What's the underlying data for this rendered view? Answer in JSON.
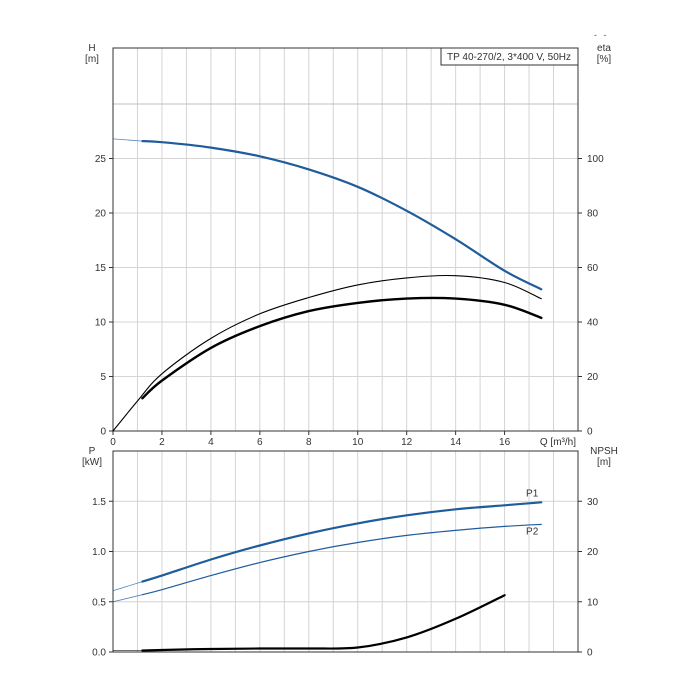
{
  "corner_mark": "- -",
  "chart_data": [
    {
      "type": "line",
      "title": "TP 40-270/2, 3*400 V, 50Hz",
      "xlabel": "Q [m³/h]",
      "xlim": [
        0,
        19
      ],
      "x_ticks": [
        "0",
        "2",
        "4",
        "6",
        "8",
        "10",
        "12",
        "14",
        "16"
      ],
      "left_axis": {
        "label": "H",
        "unit": "[m]",
        "ylim": [
          0,
          30
        ],
        "ticks": [
          "0",
          "5",
          "10",
          "15",
          "20",
          "25"
        ]
      },
      "right_axis": {
        "label": "eta",
        "unit": "[%]",
        "ylim": [
          0,
          120
        ],
        "ticks": [
          "0",
          "20",
          "40",
          "60",
          "80",
          "100"
        ]
      },
      "grid": true,
      "series": [
        {
          "name": "",
          "axis": "left",
          "color": "#1f5c9c",
          "x": [
            1.2,
            2,
            4,
            6,
            8,
            10,
            12,
            14,
            16,
            17.5
          ],
          "y": [
            26.6,
            26.5,
            26.0,
            25.2,
            24.0,
            22.4,
            20.2,
            17.6,
            14.7,
            13.0
          ],
          "x_thin": [
            0,
            1.2
          ],
          "y_thin": [
            26.8,
            26.6
          ]
        },
        {
          "name": "",
          "axis": "right",
          "color": "#000000",
          "width": 1.1,
          "x": [
            0,
            1,
            2,
            4,
            6,
            8,
            10,
            12,
            14,
            16,
            17.5
          ],
          "y": [
            0,
            11,
            21,
            34,
            43,
            49,
            53.6,
            56.2,
            57.0,
            54.5,
            48.5
          ]
        },
        {
          "name": "",
          "axis": "right",
          "color": "#000000",
          "width": 2.4,
          "x": [
            1.2,
            2,
            4,
            6,
            8,
            10,
            12,
            14,
            16,
            17.5
          ],
          "y": [
            12,
            18.5,
            30.5,
            38.5,
            44,
            47,
            48.6,
            48.6,
            46.3,
            41.5
          ]
        }
      ]
    },
    {
      "type": "line",
      "xlim": [
        0,
        19
      ],
      "left_axis": {
        "label": "P",
        "unit": "[kW]",
        "ylim": [
          0,
          2.0
        ],
        "ticks": [
          "0.0",
          "0.5",
          "1.0",
          "1.5"
        ]
      },
      "right_axis": {
        "label": "NPSH",
        "unit": "[m]",
        "ylim": [
          0,
          40
        ],
        "ticks": [
          "0",
          "10",
          "20",
          "30"
        ]
      },
      "grid": true,
      "series": [
        {
          "name": "P1",
          "axis": "left",
          "color": "#1f5c9c",
          "width": 2.2,
          "x": [
            1.2,
            2,
            4,
            6,
            8,
            10,
            12,
            14,
            16,
            17.5
          ],
          "y": [
            0.7,
            0.76,
            0.92,
            1.06,
            1.18,
            1.28,
            1.36,
            1.42,
            1.46,
            1.49
          ],
          "x_thin": [
            0,
            1.2
          ],
          "y_thin": [
            0.61,
            0.7
          ]
        },
        {
          "name": "P2",
          "axis": "left",
          "color": "#1f5c9c",
          "width": 1.2,
          "x": [
            1.2,
            2,
            4,
            6,
            8,
            10,
            12,
            14,
            16,
            17.5
          ],
          "y": [
            0.57,
            0.62,
            0.76,
            0.89,
            1.0,
            1.09,
            1.16,
            1.21,
            1.25,
            1.27
          ],
          "x_thin": [
            0,
            1.2
          ],
          "y_thin": [
            0.5,
            0.57
          ]
        },
        {
          "name": "",
          "axis": "right",
          "color": "#000000",
          "width": 2.2,
          "x": [
            1.2,
            2,
            4,
            6,
            8,
            10,
            12,
            14,
            16
          ],
          "y": [
            0.3,
            0.4,
            0.6,
            0.7,
            0.7,
            0.9,
            2.9,
            6.6,
            11.3
          ],
          "x_thin": [
            0,
            1.2
          ],
          "y_thin": [
            0.3,
            0.3
          ]
        }
      ]
    }
  ]
}
